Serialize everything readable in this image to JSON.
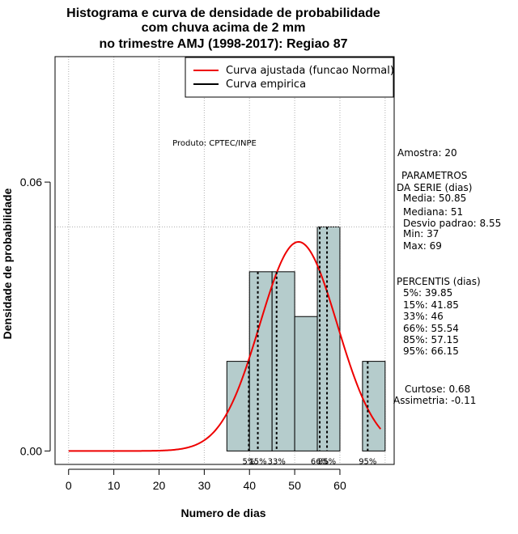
{
  "chart_data": {
    "type": "histogram",
    "title": [
      "Histograma e curva de densidade de probabilidade",
      "com chuva acima de 2 mm",
      "no trimestre AMJ (1998-2017): Regiao 87"
    ],
    "xlabel": "Numero de dias",
    "ylabel": "Densidade de probabilidade",
    "xlim": [
      -3,
      72
    ],
    "ylim": [
      -0.003,
      0.088
    ],
    "xticks": [
      0,
      10,
      20,
      30,
      40,
      50,
      60
    ],
    "yticks": [
      0.0,
      0.06
    ],
    "ytick_labels": [
      "0.00",
      "0.06"
    ],
    "bar_color": "#b5cccc",
    "curve_color": "#ee0000",
    "bins": [
      {
        "start": 35,
        "end": 40,
        "density": 0.02
      },
      {
        "start": 40,
        "end": 45,
        "density": 0.04
      },
      {
        "start": 45,
        "end": 50,
        "density": 0.04
      },
      {
        "start": 50,
        "end": 55,
        "density": 0.03
      },
      {
        "start": 55,
        "end": 60,
        "density": 0.05
      },
      {
        "start": 60,
        "end": 65,
        "density": 0.0
      },
      {
        "start": 65,
        "end": 70,
        "density": 0.02
      }
    ],
    "hline_y": 0.05,
    "fitted_curve": {
      "distribution": "normal",
      "mean": 50.85,
      "sd": 8.55,
      "x_range": [
        0,
        69
      ]
    },
    "percentiles": [
      {
        "label": "5%",
        "value": 39.85
      },
      {
        "label": "15%",
        "value": 41.85
      },
      {
        "label": "33%",
        "value": 46
      },
      {
        "label": "66%",
        "value": 55.54
      },
      {
        "label": "85%",
        "value": 57.15
      },
      {
        "label": "95%",
        "value": 66.15
      }
    ],
    "legend": [
      {
        "label": "Curva ajustada (funcao Normal)",
        "color": "#ee0000"
      },
      {
        "label": "Curva empirica",
        "color": "#000000"
      }
    ],
    "legend_position": "top-right",
    "product_note": "Produto: CPTEC/INPE"
  },
  "side_panel": {
    "amostra": "Amostra: 20",
    "param_header_1": "PARAMETROS",
    "param_header_2": "DA SERIE (dias)",
    "media": "Media: 50.85",
    "mediana": "Mediana: 51",
    "desvio": "Desvio padrao: 8.55",
    "min": "Min: 37",
    "max": "Max: 69",
    "perc_header": "PERCENTIS (dias)",
    "p5": "5%: 39.85",
    "p15": "15%: 41.85",
    "p33": "33%: 46",
    "p66": "66%: 55.54",
    "p85": "85%: 57.15",
    "p95": "95%: 66.15",
    "curtose": "Curtose: 0.68",
    "assimetria": "Assimetria: -0.11"
  }
}
